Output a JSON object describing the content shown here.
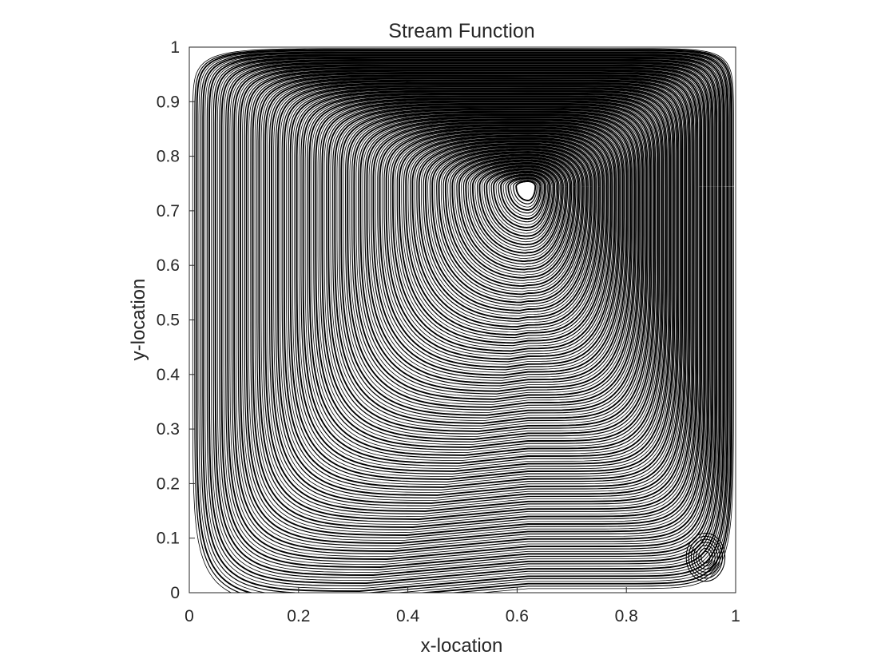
{
  "chart_data": {
    "type": "streamline",
    "title": "Stream Function",
    "xlabel": "x-location",
    "ylabel": "y-location",
    "xlim": [
      0,
      1
    ],
    "ylim": [
      0,
      1
    ],
    "xticks": [
      0,
      0.2,
      0.4,
      0.6,
      0.8,
      1
    ],
    "xtick_labels": [
      "0",
      "0.2",
      "0.4",
      "0.6",
      "0.8",
      "1"
    ],
    "yticks": [
      0,
      0.1,
      0.2,
      0.3,
      0.4,
      0.5,
      0.6,
      0.7,
      0.8,
      0.9,
      1
    ],
    "ytick_labels": [
      "0",
      "0.1",
      "0.2",
      "0.3",
      "0.4",
      "0.5",
      "0.6",
      "0.7",
      "0.8",
      "0.9",
      "1"
    ],
    "grid": false,
    "line_color": "#000000",
    "primary_vortex_center": [
      0.62,
      0.745
    ],
    "secondary_vortex_center": [
      0.945,
      0.065
    ]
  }
}
